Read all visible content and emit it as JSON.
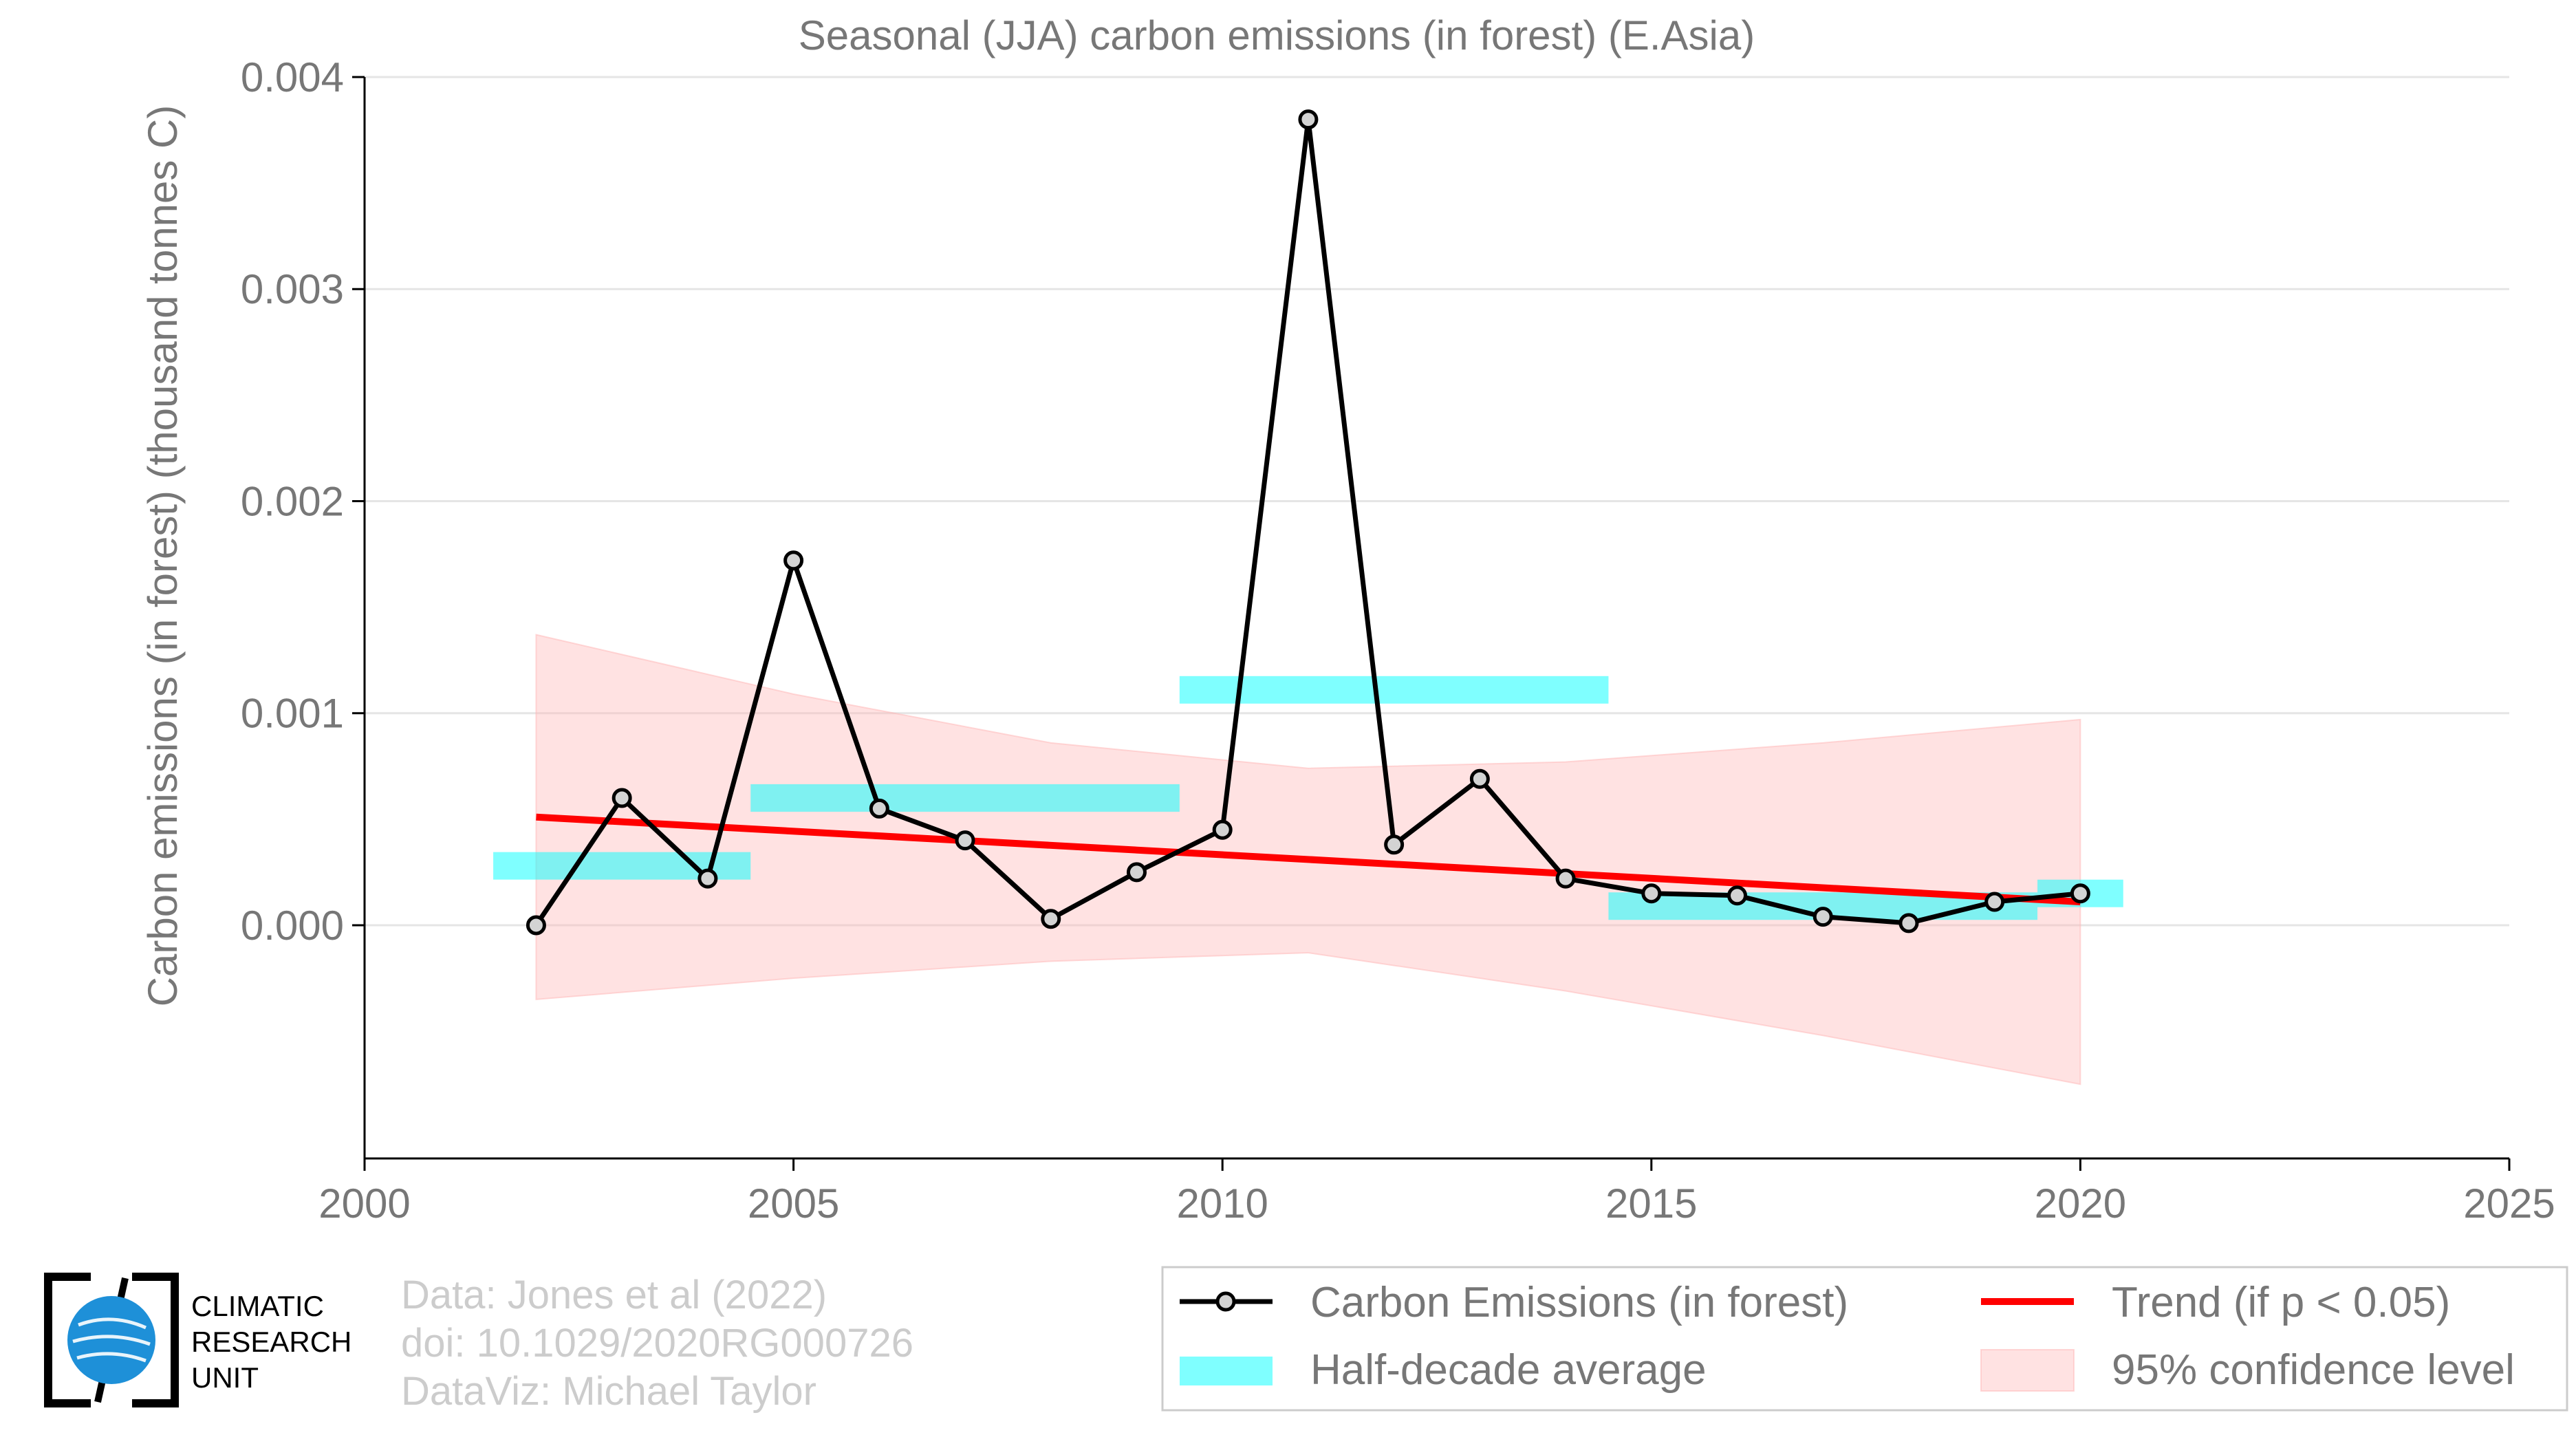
{
  "chart_data": {
    "type": "line",
    "title": "Seasonal (JJA) carbon emissions (in forest) (E.Asia)",
    "ylabel": "Carbon emissions (in forest) (thousand tonnes C)",
    "xlabel": "",
    "xlim": [
      2000,
      2025
    ],
    "ylim": [
      -0.0011,
      0.004
    ],
    "x_ticks": [
      "2000",
      "2005",
      "2010",
      "2015",
      "2020",
      "2025"
    ],
    "y_ticks": [
      "0.000",
      "0.001",
      "0.002",
      "0.003",
      "0.004"
    ],
    "grid": "horizontal",
    "legend_position": "bottom-right",
    "series": [
      {
        "name": "Carbon Emissions (in forest)",
        "type": "line-markers",
        "color": "#000000",
        "marker_fill": "#d3d3d3",
        "x": [
          2002,
          2003,
          2004,
          2005,
          2006,
          2007,
          2008,
          2009,
          2010,
          2011,
          2012,
          2013,
          2014,
          2015,
          2016,
          2017,
          2018,
          2019,
          2020
        ],
        "y": [
          0.0,
          0.0006,
          0.00022,
          0.00172,
          0.00055,
          0.0004,
          3e-05,
          0.00025,
          0.00045,
          0.0038,
          0.00038,
          0.00069,
          0.00022,
          0.00015,
          0.00014,
          4e-05,
          1e-05,
          0.00011,
          0.00015
        ]
      },
      {
        "name": "Half-decade average",
        "type": "step-bars",
        "color": "#00ffff",
        "segments": [
          {
            "x0": 2001.5,
            "x1": 2004.5,
            "y": 0.00028
          },
          {
            "x0": 2004.5,
            "x1": 2009.5,
            "y": 0.0006
          },
          {
            "x0": 2009.5,
            "x1": 2014.5,
            "y": 0.00111
          },
          {
            "x0": 2014.5,
            "x1": 2019.5,
            "y": 9e-05
          },
          {
            "x0": 2019.5,
            "x1": 2020.5,
            "y": 0.00015
          }
        ]
      },
      {
        "name": "Trend (if p < 0.05)",
        "type": "line",
        "color": "#ff0000",
        "x": [
          2002,
          2020
        ],
        "y": [
          0.00051,
          0.00011
        ]
      },
      {
        "name": "95% confidence level",
        "type": "band",
        "color": "#ffb6b6",
        "x": [
          2002,
          2005,
          2008,
          2011,
          2014,
          2017,
          2020
        ],
        "upper": [
          0.00137,
          0.00109,
          0.00086,
          0.00074,
          0.00077,
          0.00086,
          0.00097
        ],
        "lower": [
          -0.00035,
          -0.00025,
          -0.00017,
          -0.00013,
          -0.00031,
          -0.00052,
          -0.00075
        ]
      }
    ]
  },
  "credits": {
    "line1": "Data: Jones et al (2022)",
    "line2": "doi: 10.1029/2020RG000726",
    "line3": "DataViz: Michael Taylor"
  },
  "logo": {
    "line1": "CLIMATIC",
    "line2": "RESEARCH",
    "line3": "UNIT"
  }
}
